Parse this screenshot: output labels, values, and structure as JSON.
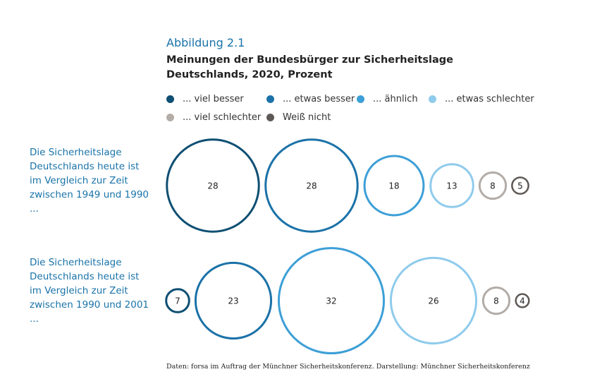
{
  "figure_label": "Abbildung 2.1",
  "chart_data": {
    "type": "bubble",
    "title": "Meinungen der Bundesbürger zur Sicherheitslage Deutschlands, 2020, Prozent",
    "title_lines": [
      "Meinungen der Bundesbürger zur Sicherheitslage",
      "Deutschlands, 2020, Prozent"
    ],
    "legend_placement": "top",
    "legend": [
      {
        "label": "... viel besser",
        "color": "#0e4f73"
      },
      {
        "label": "... etwas besser",
        "color": "#1b72a8"
      },
      {
        "label": "... ähnlich",
        "color": "#3d9fd7"
      },
      {
        "label": "... etwas schlechter",
        "color": "#8fcbec"
      },
      {
        "label": "... viel schlechter",
        "color": "#b3aca7"
      },
      {
        "label": "Weiß nicht",
        "color": "#5e5956"
      }
    ],
    "rows": [
      {
        "label_lines": [
          "Die Sicherheitslage",
          "Deutschlands heute ist",
          "im Vergleich zur Zeit",
          "zwischen 1949 und 1990",
          "..."
        ],
        "values": [
          28,
          28,
          18,
          13,
          8,
          5
        ]
      },
      {
        "label_lines": [
          "Die Sicherheitslage",
          "Deutschlands heute ist",
          "im Vergleich zur Zeit",
          "zwischen 1990 und 2001",
          "..."
        ],
        "values": [
          7,
          23,
          32,
          26,
          8,
          4
        ]
      }
    ],
    "source": "Daten: forsa im Auftrag der Münchner Sicherheitskonferenz. Darstellung: Münchner Sicherheitskonferenz"
  }
}
